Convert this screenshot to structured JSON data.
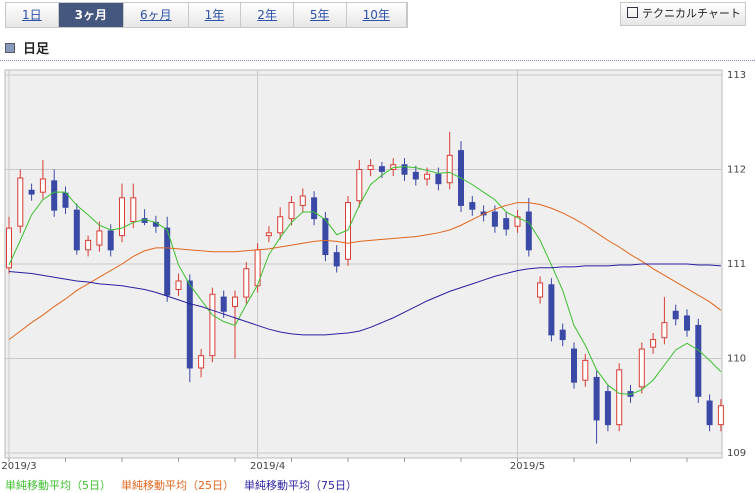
{
  "tabs": [
    "1日",
    "3ヶ月",
    "6ヶ月",
    "1年",
    "2年",
    "5年",
    "10年"
  ],
  "active_tab": 1,
  "button": "テクニカルチャート",
  "chart_data": {
    "type": "candlestick",
    "title": "日足",
    "categories": [
      "2019/3",
      null,
      null,
      null,
      null,
      null,
      null,
      null,
      null,
      null,
      null,
      null,
      null,
      null,
      null,
      null,
      null,
      null,
      null,
      null,
      null,
      null,
      "2019/4",
      null,
      null,
      null,
      null,
      null,
      null,
      null,
      null,
      null,
      null,
      null,
      null,
      null,
      null,
      null,
      null,
      null,
      null,
      null,
      null,
      null,
      null,
      "2019/5",
      null,
      null,
      null,
      null,
      null,
      null,
      null,
      null,
      null,
      null,
      null,
      null,
      null,
      null,
      null,
      null,
      null,
      null
    ],
    "open": [
      110.96,
      111.4,
      111.78,
      111.76,
      111.88,
      111.75,
      111.57,
      111.15,
      111.2,
      111.35,
      111.3,
      111.45,
      111.48,
      111.44,
      111.38,
      110.73,
      110.82,
      109.9,
      110.03,
      110.65,
      110.55,
      110.65,
      110.77,
      111.3,
      111.33,
      111.48,
      111.62,
      111.7,
      111.48,
      111.12,
      111.05,
      111.67,
      112.0,
      112.03,
      112.0,
      112.05,
      111.97,
      111.9,
      111.95,
      111.86,
      112.2,
      111.65,
      111.55,
      111.55,
      111.48,
      111.4,
      111.55,
      110.65,
      110.78,
      110.3,
      110.1,
      109.77,
      109.8,
      109.65,
      109.3,
      109.65,
      109.7,
      110.12,
      110.22,
      110.5,
      110.45,
      110.35,
      109.55,
      109.3
    ],
    "high": [
      111.5,
      112.0,
      111.85,
      112.1,
      112.0,
      111.82,
      111.64,
      111.3,
      111.45,
      111.42,
      111.85,
      111.85,
      111.58,
      111.51,
      111.5,
      110.9,
      110.89,
      110.1,
      110.75,
      110.72,
      110.72,
      111.02,
      111.22,
      111.4,
      111.6,
      111.72,
      111.8,
      111.77,
      111.55,
      111.2,
      111.72,
      112.1,
      112.11,
      112.08,
      112.12,
      112.12,
      112.04,
      112.02,
      112.02,
      112.4,
      112.3,
      111.72,
      111.62,
      111.62,
      111.55,
      111.57,
      111.7,
      110.87,
      110.85,
      110.37,
      110.17,
      110.05,
      109.87,
      109.72,
      109.95,
      109.72,
      110.17,
      110.27,
      110.65,
      110.57,
      110.52,
      110.42,
      109.62,
      109.57
    ],
    "low": [
      110.9,
      111.33,
      111.67,
      111.69,
      111.5,
      111.53,
      111.1,
      111.08,
      111.13,
      111.08,
      111.23,
      111.38,
      111.41,
      111.33,
      110.6,
      110.66,
      109.75,
      109.8,
      109.96,
      110.43,
      110.0,
      110.58,
      110.7,
      111.23,
      111.26,
      111.41,
      111.55,
      111.41,
      111.03,
      110.91,
      110.98,
      111.6,
      111.93,
      111.91,
      111.93,
      111.88,
      111.83,
      111.83,
      111.78,
      111.79,
      111.55,
      111.51,
      111.45,
      111.33,
      111.3,
      111.33,
      111.08,
      110.58,
      110.18,
      110.13,
      109.68,
      109.7,
      109.1,
      109.23,
      109.23,
      109.53,
      109.63,
      110.05,
      110.15,
      110.35,
      110.23,
      109.53,
      109.23,
      109.23
    ],
    "close": [
      111.38,
      111.91,
      111.74,
      111.9,
      111.57,
      111.6,
      111.15,
      111.25,
      111.35,
      111.15,
      111.7,
      111.7,
      111.44,
      111.4,
      110.67,
      110.82,
      109.9,
      110.03,
      110.68,
      110.5,
      110.65,
      110.95,
      111.15,
      111.33,
      111.5,
      111.65,
      111.72,
      111.48,
      111.1,
      110.98,
      111.65,
      112.0,
      112.04,
      111.98,
      112.05,
      111.95,
      111.9,
      111.95,
      111.85,
      112.15,
      111.62,
      111.58,
      111.52,
      111.4,
      111.37,
      111.5,
      111.15,
      110.8,
      110.25,
      110.2,
      109.75,
      109.98,
      109.35,
      109.3,
      109.88,
      109.6,
      110.1,
      110.2,
      110.38,
      110.42,
      110.3,
      109.6,
      109.3,
      109.5
    ],
    "up_color": "#d83c34",
    "down_color": "#3a48a6",
    "series": [
      {
        "name": "単純移動平均（5日）",
        "color": "#3cbf2e",
        "values": [
          110.99,
          111.25,
          111.52,
          111.68,
          111.76,
          111.76,
          111.62,
          111.52,
          111.41,
          111.36,
          111.38,
          111.44,
          111.47,
          111.44,
          111.36,
          110.99,
          110.78,
          110.62,
          110.46,
          110.39,
          110.35,
          110.57,
          110.78,
          111.1,
          111.28,
          111.44,
          111.55,
          111.55,
          111.47,
          111.31,
          111.36,
          111.62,
          111.84,
          111.94,
          112.02,
          112.03,
          112.02,
          111.99,
          111.96,
          111.97,
          111.91,
          111.84,
          111.76,
          111.68,
          111.55,
          111.49,
          111.44,
          111.25,
          110.99,
          110.72,
          110.35,
          110.14,
          109.88,
          109.72,
          109.63,
          109.62,
          109.67,
          109.77,
          109.93,
          110.09,
          110.16,
          110.09,
          109.98,
          109.86
        ]
      },
      {
        "name": "単純移動平均（25日）",
        "color": "#e0661c",
        "values": [
          110.2,
          110.29,
          110.38,
          110.46,
          110.55,
          110.63,
          110.72,
          110.79,
          110.86,
          110.93,
          111.0,
          111.08,
          111.14,
          111.17,
          111.17,
          111.16,
          111.15,
          111.14,
          111.13,
          111.13,
          111.13,
          111.14,
          111.15,
          111.16,
          111.18,
          111.2,
          111.22,
          111.24,
          111.25,
          111.24,
          111.22,
          111.24,
          111.25,
          111.26,
          111.27,
          111.28,
          111.29,
          111.31,
          111.33,
          111.36,
          111.41,
          111.47,
          111.53,
          111.58,
          111.62,
          111.65,
          111.65,
          111.63,
          111.59,
          111.54,
          111.48,
          111.41,
          111.33,
          111.25,
          111.18,
          111.1,
          111.03,
          110.95,
          110.88,
          110.81,
          110.74,
          110.67,
          110.6,
          110.51
        ]
      },
      {
        "name": "単純移動平均（75日）",
        "color": "#2a1fa0",
        "values": [
          110.92,
          110.91,
          110.9,
          110.88,
          110.86,
          110.84,
          110.82,
          110.81,
          110.79,
          110.78,
          110.77,
          110.75,
          110.73,
          110.7,
          110.66,
          110.62,
          110.58,
          110.55,
          110.51,
          110.47,
          110.43,
          110.39,
          110.35,
          110.31,
          110.28,
          110.26,
          110.25,
          110.25,
          110.25,
          110.26,
          110.27,
          110.29,
          110.33,
          110.38,
          110.43,
          110.49,
          110.55,
          110.61,
          110.66,
          110.71,
          110.75,
          110.79,
          110.83,
          110.87,
          110.9,
          110.93,
          110.95,
          110.96,
          110.96,
          110.97,
          110.97,
          110.98,
          110.98,
          110.98,
          110.99,
          110.99,
          111.0,
          111.0,
          111.0,
          111.0,
          111.0,
          110.99,
          110.99,
          110.98
        ]
      }
    ],
    "ylim": [
      109,
      113
    ],
    "yticks": [
      109,
      110,
      111,
      112,
      113
    ],
    "grid": true
  }
}
